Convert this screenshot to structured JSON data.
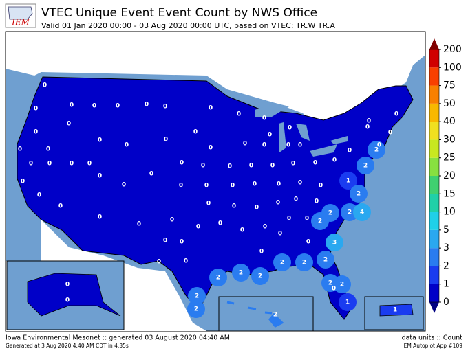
{
  "header": {
    "logo": "IEM",
    "title": "VTEC Unique Event Event Count by NWS Office",
    "subtitle": "Valid 01 Jan 2020 00:00 - 03 Aug 2020 00:00 UTC, based on VTEC: TR.W TR.A"
  },
  "colorbar": {
    "ticks": [
      0,
      1,
      2,
      3,
      5,
      10,
      15,
      20,
      25,
      30,
      40,
      50,
      75,
      100,
      200
    ],
    "colors": [
      "#0000c8",
      "#1a3cf0",
      "#2a7cf0",
      "#2aa8f0",
      "#20d0e8",
      "#20d0a8",
      "#40d070",
      "#88e040",
      "#c8e820",
      "#f0e020",
      "#f8b800",
      "#f88000",
      "#f84000",
      "#d00000"
    ]
  },
  "office_counts": [
    0,
    0,
    0,
    0,
    0,
    0,
    0,
    0,
    0,
    0,
    0,
    0,
    0,
    0,
    0,
    0,
    0,
    0,
    0,
    0,
    0,
    0,
    0,
    0,
    0,
    0,
    0,
    0,
    0,
    0,
    0,
    0,
    0,
    0,
    0,
    0,
    0,
    0,
    0,
    0,
    0,
    0,
    0,
    0,
    0,
    0,
    0,
    0,
    0,
    0,
    0,
    0,
    0,
    0,
    0,
    0,
    0,
    0,
    0,
    0,
    0,
    0,
    0,
    0,
    0,
    0,
    0,
    0,
    0,
    0,
    0,
    0,
    0,
    0,
    0,
    0,
    0,
    0,
    2,
    2,
    1,
    2,
    2,
    4,
    2,
    2,
    3,
    2,
    2,
    2,
    2,
    2,
    2,
    2,
    2,
    2,
    0,
    2,
    1,
    0,
    0,
    2,
    1
  ],
  "footer": {
    "left": "Iowa Environmental Mesonet :: generated 03 August 2020 04:40 AM",
    "right": "data units :: Count",
    "generated": "Generated at 3 Aug 2020 4:40 AM CDT in 4.35s",
    "app": "IEM Autoplot App #109"
  }
}
